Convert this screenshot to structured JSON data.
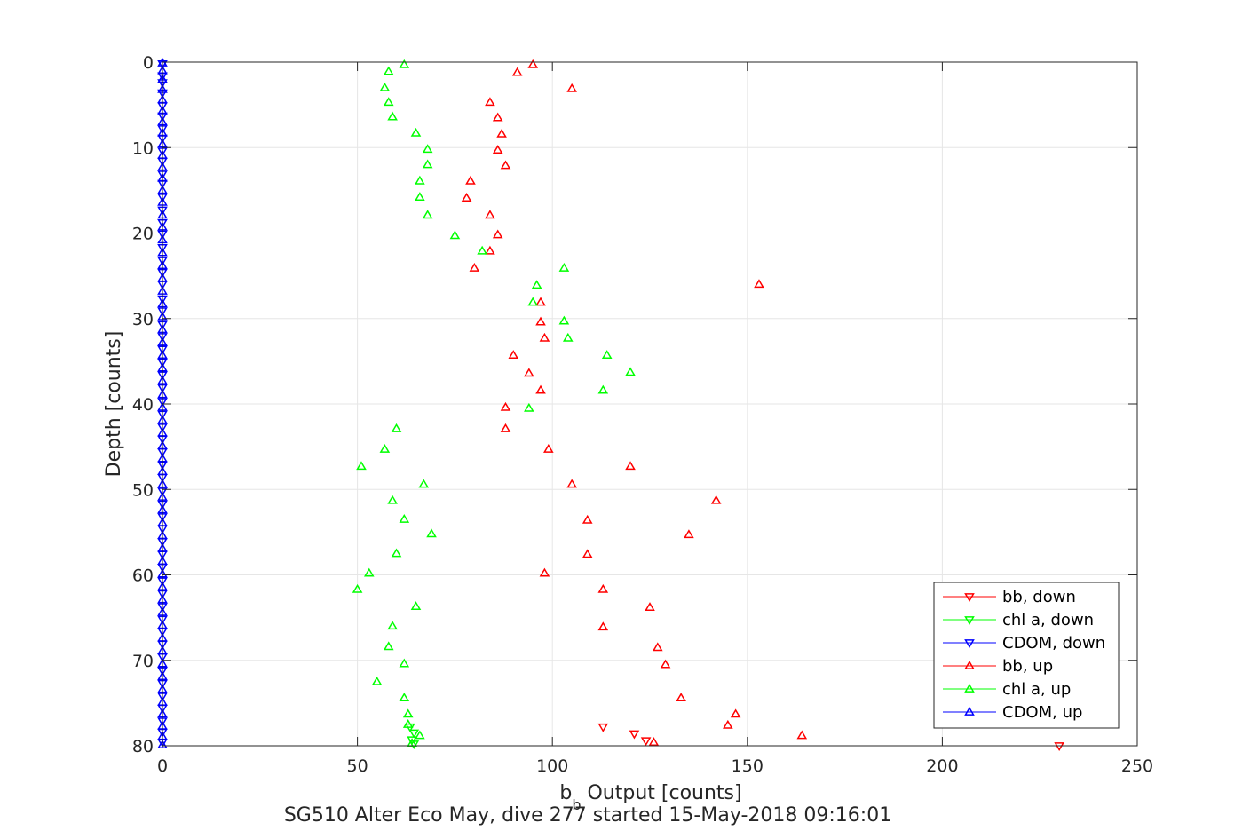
{
  "chart_data": {
    "type": "scatter",
    "title": "SG510 Alter Eco May, dive 277 started 15-May-2018 09:16:01",
    "xlabel_main": "b",
    "xlabel_sub": "b",
    "xlabel_rest": " Output [counts]",
    "ylabel": "Depth [counts]",
    "xlim": [
      0,
      250
    ],
    "ylim": [
      0,
      80
    ],
    "y_reversed": true,
    "grid": true,
    "xticks": [
      0,
      50,
      100,
      150,
      200,
      250
    ],
    "yticks": [
      0,
      10,
      20,
      30,
      40,
      50,
      60,
      70,
      80
    ],
    "legend_position": "bottom-right",
    "colors": {
      "bb": "#ff0000",
      "chl": "#00ff00",
      "cdom": "#0000ff"
    },
    "series": [
      {
        "name": "bb, down",
        "color": "#ff0000",
        "marker": "triangle-down",
        "points": [
          [
            113,
            77.8
          ],
          [
            121,
            78.6
          ],
          [
            124,
            79.4
          ],
          [
            230,
            80
          ]
        ]
      },
      {
        "name": "chl a, down",
        "color": "#00ff00",
        "marker": "triangle-down",
        "points": [
          [
            63.5,
            77.8
          ],
          [
            64.5,
            78.5
          ],
          [
            64,
            79.3
          ],
          [
            64.5,
            79.8
          ]
        ]
      },
      {
        "name": "CDOM, down",
        "color": "#0000ff",
        "marker": "triangle-down",
        "points": [
          [
            0,
            0.2
          ],
          [
            0,
            1.6
          ],
          [
            0,
            2.4
          ],
          [
            0,
            3.6
          ],
          [
            0,
            5.1
          ],
          [
            0,
            6.3
          ],
          [
            0,
            7.8
          ],
          [
            0,
            8.9
          ],
          [
            0,
            10.4
          ],
          [
            0,
            11.6
          ],
          [
            0,
            13.1
          ],
          [
            0,
            14.2
          ],
          [
            0,
            15.8
          ],
          [
            0,
            17.3
          ],
          [
            0,
            18.8
          ],
          [
            0,
            20.1
          ],
          [
            0,
            21.7
          ],
          [
            0,
            23.2
          ],
          [
            0,
            24.6
          ],
          [
            0,
            26.0
          ],
          [
            0,
            27.7
          ],
          [
            0,
            29.1
          ],
          [
            0,
            30.7
          ],
          [
            0,
            32.1
          ],
          [
            0,
            33.6
          ],
          [
            0,
            35.1
          ],
          [
            0,
            36.6
          ],
          [
            0,
            38.1
          ],
          [
            0,
            39.7
          ],
          [
            0,
            41.2
          ],
          [
            0,
            42.7
          ],
          [
            0,
            44.1
          ],
          [
            0,
            45.6
          ],
          [
            0,
            47.1
          ],
          [
            0,
            48.6
          ],
          [
            0,
            50.2
          ],
          [
            0,
            51.7
          ],
          [
            0,
            53.2
          ],
          [
            0,
            54.6
          ],
          [
            0,
            56.1
          ],
          [
            0,
            57.6
          ],
          [
            0,
            59.1
          ],
          [
            0,
            60.7
          ],
          [
            0,
            62.2
          ],
          [
            0,
            63.7
          ],
          [
            0,
            65.2
          ],
          [
            0,
            66.6
          ],
          [
            0,
            68.1
          ],
          [
            0,
            69.6
          ],
          [
            0,
            71.2
          ],
          [
            0,
            72.7
          ],
          [
            0,
            74.2
          ],
          [
            0,
            75.6
          ],
          [
            0,
            77.1
          ],
          [
            0,
            78.4
          ],
          [
            0,
            79.6
          ]
        ]
      },
      {
        "name": "bb, up",
        "color": "#ff0000",
        "marker": "triangle-up",
        "points": [
          [
            95,
            0.3
          ],
          [
            91,
            1.2
          ],
          [
            105,
            3.1
          ],
          [
            84,
            4.7
          ],
          [
            86,
            6.5
          ],
          [
            87,
            8.4
          ],
          [
            86,
            10.3
          ],
          [
            88,
            12.1
          ],
          [
            79,
            13.9
          ],
          [
            78,
            15.9
          ],
          [
            84,
            17.9
          ],
          [
            86,
            20.2
          ],
          [
            84,
            22.1
          ],
          [
            80,
            24.1
          ],
          [
            153,
            26.0
          ],
          [
            97,
            28.1
          ],
          [
            97,
            30.4
          ],
          [
            98,
            32.3
          ],
          [
            90,
            34.3
          ],
          [
            94,
            36.4
          ],
          [
            97,
            38.4
          ],
          [
            88,
            40.4
          ],
          [
            88,
            42.9
          ],
          [
            99,
            45.3
          ],
          [
            120,
            47.3
          ],
          [
            105,
            49.4
          ],
          [
            142,
            51.3
          ],
          [
            109,
            53.6
          ],
          [
            135,
            55.3
          ],
          [
            109,
            57.6
          ],
          [
            98,
            59.8
          ],
          [
            113,
            61.7
          ],
          [
            125,
            63.8
          ],
          [
            113,
            66.1
          ],
          [
            127,
            68.5
          ],
          [
            129,
            70.5
          ],
          [
            133,
            74.4
          ],
          [
            147,
            76.3
          ],
          [
            145,
            77.6
          ],
          [
            164,
            78.8
          ],
          [
            126,
            79.6
          ]
        ]
      },
      {
        "name": "chl a, up",
        "color": "#00ff00",
        "marker": "triangle-up",
        "points": [
          [
            62,
            0.3
          ],
          [
            58,
            1.1
          ],
          [
            57,
            3.0
          ],
          [
            58,
            4.7
          ],
          [
            59,
            6.4
          ],
          [
            65,
            8.3
          ],
          [
            68,
            10.2
          ],
          [
            68,
            12.0
          ],
          [
            66,
            13.9
          ],
          [
            66,
            15.8
          ],
          [
            68,
            17.9
          ],
          [
            75,
            20.3
          ],
          [
            82,
            22.1
          ],
          [
            103,
            24.1
          ],
          [
            96,
            26.1
          ],
          [
            95,
            28.1
          ],
          [
            103,
            30.3
          ],
          [
            104,
            32.3
          ],
          [
            114,
            34.3
          ],
          [
            120,
            36.3
          ],
          [
            113,
            38.4
          ],
          [
            94,
            40.5
          ],
          [
            60,
            42.9
          ],
          [
            57,
            45.3
          ],
          [
            51,
            47.3
          ],
          [
            67,
            49.4
          ],
          [
            59,
            51.3
          ],
          [
            62,
            53.5
          ],
          [
            69,
            55.2
          ],
          [
            60,
            57.5
          ],
          [
            53,
            59.8
          ],
          [
            50,
            61.7
          ],
          [
            65,
            63.7
          ],
          [
            59,
            66.0
          ],
          [
            58,
            68.4
          ],
          [
            62,
            70.4
          ],
          [
            55,
            72.5
          ],
          [
            62,
            74.4
          ],
          [
            63,
            76.3
          ],
          [
            63,
            77.5
          ],
          [
            66,
            78.8
          ],
          [
            64,
            79.7
          ]
        ]
      },
      {
        "name": "CDOM, up",
        "color": "#0000ff",
        "marker": "triangle-up",
        "points": [
          [
            0,
            0.1
          ],
          [
            0,
            1.0
          ],
          [
            0,
            2.0
          ],
          [
            0,
            3.2
          ],
          [
            0,
            4.4
          ],
          [
            0,
            5.7
          ],
          [
            0,
            7.0
          ],
          [
            0,
            8.3
          ],
          [
            0,
            9.6
          ],
          [
            0,
            10.9
          ],
          [
            0,
            12.3
          ],
          [
            0,
            13.6
          ],
          [
            0,
            15.0
          ],
          [
            0,
            16.4
          ],
          [
            0,
            17.9
          ],
          [
            0,
            19.3
          ],
          [
            0,
            20.8
          ],
          [
            0,
            22.3
          ],
          [
            0,
            23.8
          ],
          [
            0,
            25.3
          ],
          [
            0,
            26.8
          ],
          [
            0,
            28.3
          ],
          [
            0,
            29.8
          ],
          [
            0,
            31.3
          ],
          [
            0,
            32.8
          ],
          [
            0,
            34.3
          ],
          [
            0,
            35.8
          ],
          [
            0,
            37.3
          ],
          [
            0,
            38.9
          ],
          [
            0,
            40.4
          ],
          [
            0,
            41.9
          ],
          [
            0,
            43.4
          ],
          [
            0,
            44.9
          ],
          [
            0,
            46.4
          ],
          [
            0,
            47.9
          ],
          [
            0,
            49.4
          ],
          [
            0,
            50.9
          ],
          [
            0,
            52.4
          ],
          [
            0,
            53.9
          ],
          [
            0,
            55.4
          ],
          [
            0,
            56.9
          ],
          [
            0,
            58.4
          ],
          [
            0,
            59.9
          ],
          [
            0,
            61.4
          ],
          [
            0,
            62.9
          ],
          [
            0,
            64.4
          ],
          [
            0,
            65.9
          ],
          [
            0,
            67.4
          ],
          [
            0,
            68.9
          ],
          [
            0,
            70.4
          ],
          [
            0,
            71.9
          ],
          [
            0,
            73.4
          ],
          [
            0,
            74.9
          ],
          [
            0,
            76.3
          ],
          [
            0,
            77.7
          ],
          [
            0,
            78.9
          ],
          [
            0,
            79.9
          ]
        ]
      }
    ]
  }
}
